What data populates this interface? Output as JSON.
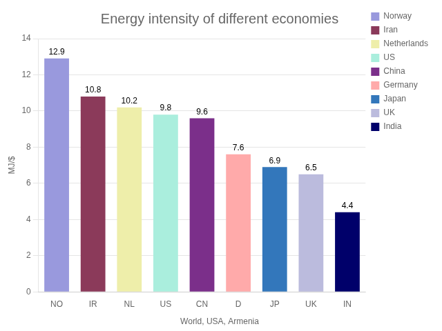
{
  "chart_data": {
    "type": "bar",
    "title": "Energy intensity of different economies",
    "subtitle": "World, USA, Armenia",
    "ylabel": "MJ/$",
    "categories": [
      "NO",
      "IR",
      "NL",
      "US",
      "CN",
      "D",
      "JP",
      "UK",
      "IN"
    ],
    "series": [
      {
        "name": "Norway",
        "color": "#9999DD",
        "values": [
          12.9,
          null,
          null,
          null,
          null,
          null,
          null,
          null,
          null
        ]
      },
      {
        "name": "Iran",
        "color": "#8B3A5A",
        "values": [
          null,
          10.8,
          null,
          null,
          null,
          null,
          null,
          null,
          null
        ]
      },
      {
        "name": "Netherlands",
        "color": "#EEEEAA",
        "values": [
          null,
          null,
          10.2,
          null,
          null,
          null,
          null,
          null,
          null
        ]
      },
      {
        "name": "US",
        "color": "#AAEEDD",
        "values": [
          null,
          null,
          null,
          9.8,
          null,
          null,
          null,
          null,
          null
        ]
      },
      {
        "name": "China",
        "color": "#7B2F8A",
        "values": [
          null,
          null,
          null,
          null,
          9.6,
          null,
          null,
          null,
          null
        ]
      },
      {
        "name": "Germany",
        "color": "#FFAAAA",
        "values": [
          null,
          null,
          null,
          null,
          null,
          7.6,
          null,
          null,
          null
        ]
      },
      {
        "name": "Japan",
        "color": "#3377BB",
        "values": [
          null,
          null,
          null,
          null,
          null,
          null,
          6.9,
          null,
          null
        ]
      },
      {
        "name": "UK",
        "color": "#BBBBDD",
        "values": [
          null,
          null,
          null,
          null,
          null,
          null,
          null,
          6.5,
          null
        ]
      },
      {
        "name": "India",
        "color": "#00006A",
        "values": [
          null,
          null,
          null,
          null,
          null,
          null,
          null,
          null,
          4.4
        ]
      }
    ],
    "ylim": [
      0,
      14
    ],
    "yticks": [
      0,
      2,
      4,
      6,
      8,
      10,
      12,
      14
    ],
    "grid": true,
    "data_labels": true,
    "legend": "upper right"
  }
}
